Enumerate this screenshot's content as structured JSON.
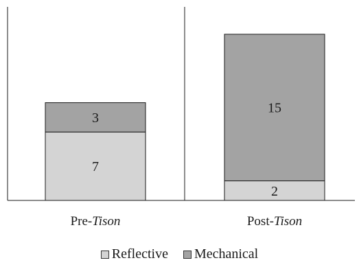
{
  "chart_data": {
    "type": "bar",
    "stacked": true,
    "categories": [
      {
        "prefix": "Pre-",
        "italic": "Tison"
      },
      {
        "prefix": "Post-",
        "italic": "Tison"
      }
    ],
    "series": [
      {
        "name": "Reflective",
        "values": [
          7,
          2
        ],
        "color": "#d4d4d4"
      },
      {
        "name": "Mechanical",
        "values": [
          3,
          15
        ],
        "color": "#a3a3a3"
      }
    ],
    "ylim": [
      0,
      19.8
    ],
    "grid": false,
    "legend_position": "bottom-center"
  }
}
